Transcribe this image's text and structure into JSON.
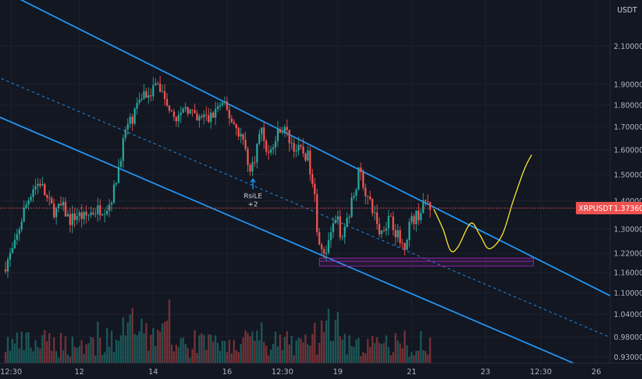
{
  "chart_data": {
    "type": "candlestick",
    "symbol_tag": "XRPUSDT",
    "current_price": "1.37360",
    "currency": "USDT",
    "y_scale": "log",
    "ylim": [
      0.915,
      2.25
    ],
    "y_ticks": [
      {
        "value": 2.1,
        "label": "2.10000"
      },
      {
        "value": 1.9,
        "label": "1.90000"
      },
      {
        "value": 1.8,
        "label": "1.80000"
      },
      {
        "value": 1.7,
        "label": "1.70000"
      },
      {
        "value": 1.6,
        "label": "1.60000"
      },
      {
        "value": 1.5,
        "label": "1.50000"
      },
      {
        "value": 1.4,
        "label": "1.40000"
      },
      {
        "value": 1.3,
        "label": "1.30000"
      },
      {
        "value": 1.22,
        "label": "1.22000"
      },
      {
        "value": 1.16,
        "label": "1.16000"
      },
      {
        "value": 1.1,
        "label": "1.10000"
      },
      {
        "value": 1.04,
        "label": "1.04000"
      },
      {
        "value": 0.98,
        "label": "0.98000"
      },
      {
        "value": 0.93,
        "label": "0.93000"
      }
    ],
    "x_ticks": [
      {
        "t": 0.15,
        "label": "12:30"
      },
      {
        "t": 2,
        "label": "12"
      },
      {
        "t": 4,
        "label": "14"
      },
      {
        "t": 6,
        "label": "16"
      },
      {
        "t": 7.5,
        "label": "12:30"
      },
      {
        "t": 9,
        "label": "19"
      },
      {
        "t": 11,
        "label": "21"
      },
      {
        "t": 13,
        "label": "23"
      },
      {
        "t": 14.5,
        "label": "12:30"
      },
      {
        "t": 16,
        "label": "26"
      }
    ],
    "series": [
      {
        "type": "price_path",
        "points": [
          [
            0.0,
            1.17
          ],
          [
            0.3,
            1.24
          ],
          [
            0.55,
            1.36
          ],
          [
            0.8,
            1.45
          ],
          [
            1.0,
            1.47
          ],
          [
            1.2,
            1.4
          ],
          [
            1.4,
            1.36
          ],
          [
            1.6,
            1.38
          ],
          [
            1.8,
            1.33
          ],
          [
            2.0,
            1.35
          ],
          [
            2.2,
            1.34
          ],
          [
            2.4,
            1.36
          ],
          [
            2.6,
            1.37
          ],
          [
            2.85,
            1.38
          ],
          [
            3.0,
            1.44
          ],
          [
            3.15,
            1.55
          ],
          [
            3.3,
            1.68
          ],
          [
            3.45,
            1.72
          ],
          [
            3.6,
            1.78
          ],
          [
            3.75,
            1.85
          ],
          [
            3.9,
            1.86
          ],
          [
            4.05,
            1.88
          ],
          [
            4.2,
            1.9
          ],
          [
            4.35,
            1.84
          ],
          [
            4.5,
            1.8
          ],
          [
            4.65,
            1.76
          ],
          [
            4.8,
            1.73
          ],
          [
            4.95,
            1.8
          ],
          [
            5.1,
            1.76
          ],
          [
            5.25,
            1.72
          ],
          [
            5.4,
            1.75
          ],
          [
            5.55,
            1.73
          ],
          [
            5.7,
            1.76
          ],
          [
            5.85,
            1.8
          ],
          [
            6.0,
            1.79
          ],
          [
            6.15,
            1.74
          ],
          [
            6.3,
            1.7
          ],
          [
            6.45,
            1.66
          ],
          [
            6.6,
            1.58
          ],
          [
            6.7,
            1.5
          ],
          [
            6.85,
            1.6
          ],
          [
            7.0,
            1.7
          ],
          [
            7.1,
            1.62
          ],
          [
            7.2,
            1.58
          ],
          [
            7.35,
            1.63
          ],
          [
            7.5,
            1.7
          ],
          [
            7.65,
            1.68
          ],
          [
            7.8,
            1.63
          ],
          [
            7.95,
            1.6
          ],
          [
            8.1,
            1.59
          ],
          [
            8.25,
            1.57
          ],
          [
            8.4,
            1.47
          ],
          [
            8.5,
            1.3
          ],
          [
            8.6,
            1.25
          ],
          [
            8.75,
            1.22
          ],
          [
            8.9,
            1.3
          ],
          [
            9.05,
            1.33
          ],
          [
            9.15,
            1.28
          ],
          [
            9.3,
            1.33
          ],
          [
            9.45,
            1.4
          ],
          [
            9.55,
            1.46
          ],
          [
            9.65,
            1.52
          ],
          [
            9.8,
            1.44
          ],
          [
            9.95,
            1.38
          ],
          [
            10.1,
            1.34
          ],
          [
            10.2,
            1.28
          ],
          [
            10.35,
            1.32
          ],
          [
            10.5,
            1.35
          ],
          [
            10.6,
            1.3
          ],
          [
            10.75,
            1.26
          ],
          [
            10.85,
            1.24
          ],
          [
            11.0,
            1.32
          ],
          [
            11.15,
            1.34
          ],
          [
            11.3,
            1.36
          ],
          [
            11.45,
            1.4
          ],
          [
            11.55,
            1.38
          ]
        ]
      },
      {
        "type": "projection",
        "points": [
          [
            11.6,
            1.37
          ],
          [
            11.85,
            1.3
          ],
          [
            12.05,
            1.23
          ],
          [
            12.25,
            1.24
          ],
          [
            12.6,
            1.32
          ],
          [
            12.85,
            1.28
          ],
          [
            13.1,
            1.235
          ],
          [
            13.45,
            1.28
          ],
          [
            13.75,
            1.4
          ],
          [
            14.05,
            1.52
          ],
          [
            14.25,
            1.58
          ]
        ]
      }
    ],
    "channel": {
      "upper": [
        [
          -0.25,
          2.45
        ],
        [
          16.6,
          1.08
        ]
      ],
      "middle": [
        [
          -0.25,
          1.94
        ],
        [
          16.6,
          0.97
        ]
      ],
      "lower": [
        [
          -0.25,
          1.75
        ],
        [
          16.6,
          0.87
        ]
      ]
    },
    "support_zone": {
      "x0": 8.5,
      "x1": 14.3,
      "y_low": 1.18,
      "y_high": 1.205,
      "y_mid": 1.195
    },
    "annotations": [
      {
        "t": 6.7,
        "price": 1.48,
        "label1": "RsiLE",
        "label2": "+2"
      }
    ],
    "colors": {
      "up": "#26a69a",
      "down": "#ef5350",
      "channel": "#2196f3",
      "projection": "#f5e130",
      "zone": "#9c27b0",
      "price_line": "#ef5350",
      "bg": "#131722"
    }
  }
}
